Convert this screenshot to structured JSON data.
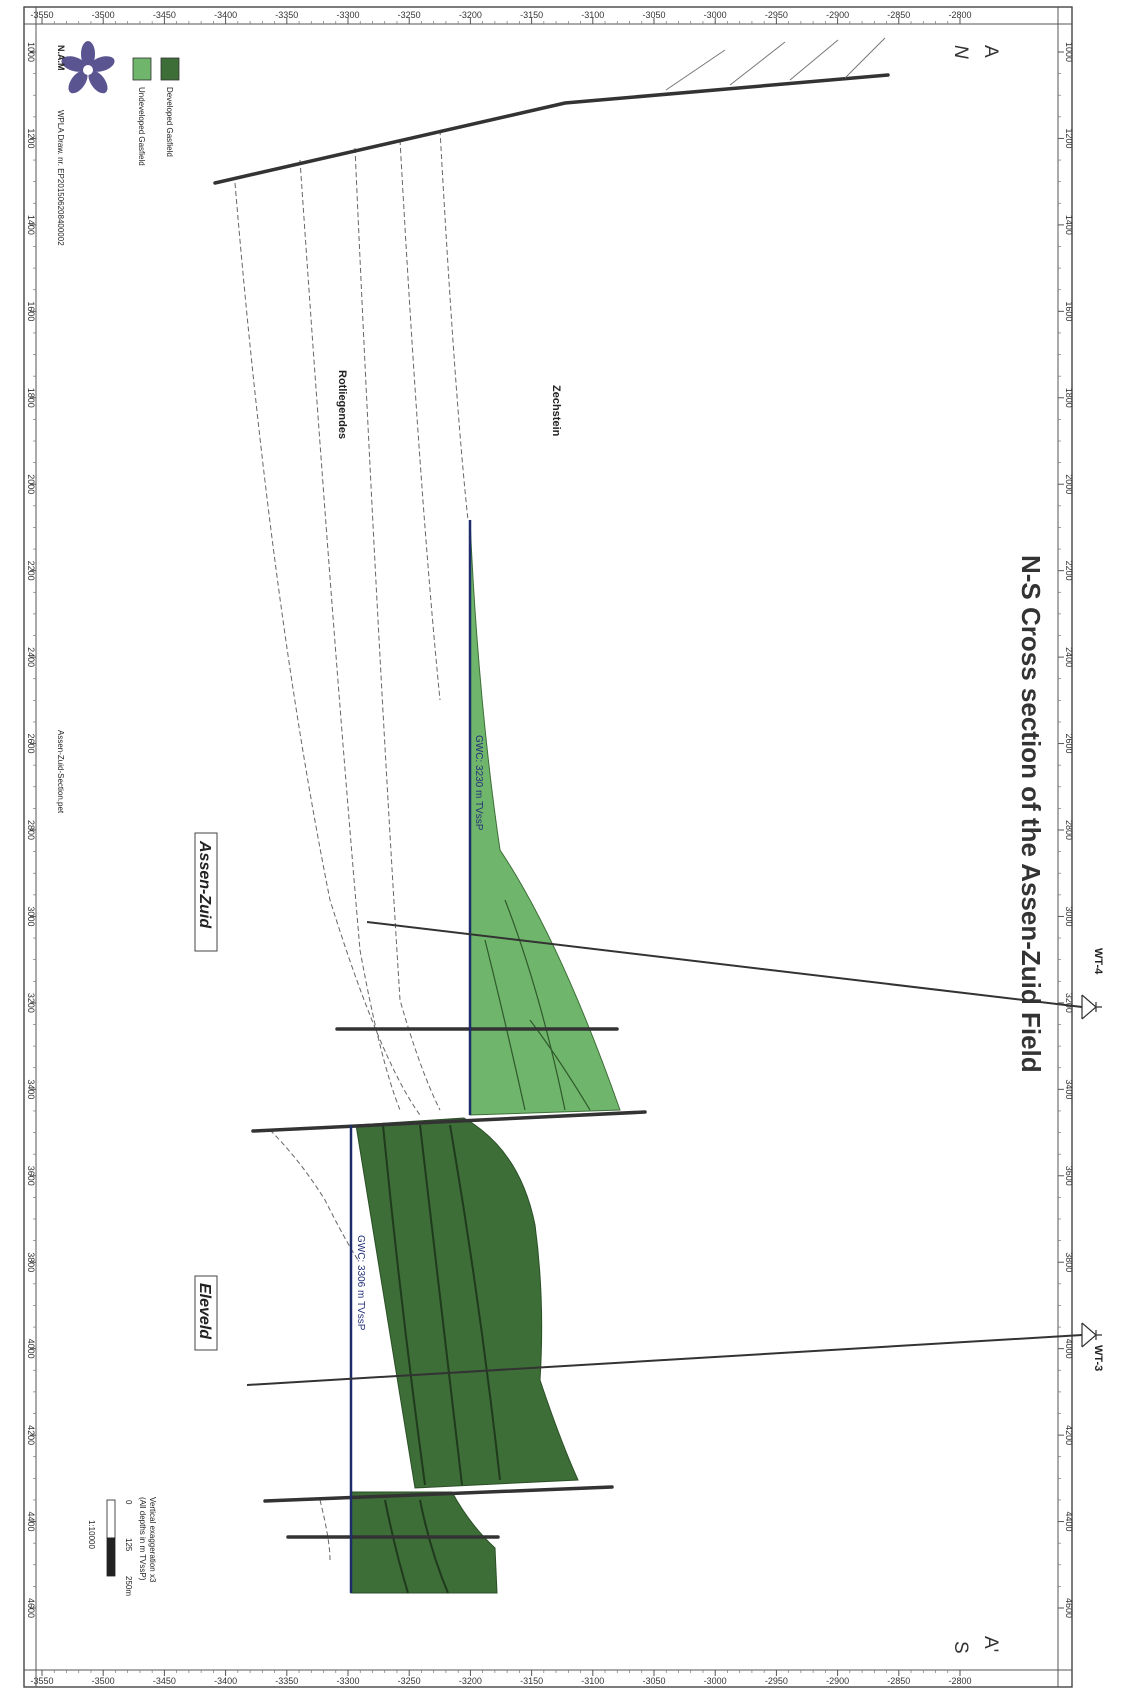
{
  "title": "N-S Cross section of the Assen-Zuid Field",
  "north_end": {
    "letter": "A",
    "direction": "N"
  },
  "south_end": {
    "letter": "A'",
    "direction": "S"
  },
  "depth_ticks": [
    "-3550",
    "-3500",
    "-3450",
    "-3400",
    "-3350",
    "-3300",
    "-3250",
    "-3200",
    "-3150",
    "-3100",
    "-3050",
    "-3000",
    "-2950",
    "-2900",
    "-2850",
    "-2800"
  ],
  "distance_ticks": [
    "1000",
    "1200",
    "1400",
    "1600",
    "1800",
    "2000",
    "2200",
    "2400",
    "2600",
    "2800",
    "3000",
    "3200",
    "3400",
    "3600",
    "3800",
    "4000",
    "4200",
    "4400",
    "4600"
  ],
  "formations": {
    "upper": "Zechstein",
    "lower": "Rotliegendes"
  },
  "contacts": {
    "gwc_west": "GWC: 3230 m TVssP",
    "gwc_east": "GWC: 3306 m TVssP"
  },
  "wells": [
    "WT-4",
    "WT-3"
  ],
  "fields": [
    "Assen-Zuid",
    "Eleveld"
  ],
  "legend": {
    "items": [
      {
        "label": "Developed Gasfield",
        "color": "#3d6e37"
      },
      {
        "label": "Undeveloped Gasfield",
        "color": "#6fb56b"
      }
    ]
  },
  "company": "N.A.M",
  "drawing_number": "WPLA Draw. nr. EP201506208400002",
  "filename": "Assen-Zuid-Section.pet",
  "scale": {
    "note": "Vertical exaggeration x3",
    "depth_note": "(All depths in m TVssP)",
    "ticks": [
      "0",
      "125",
      "250m"
    ],
    "ratio": "1:10000"
  }
}
